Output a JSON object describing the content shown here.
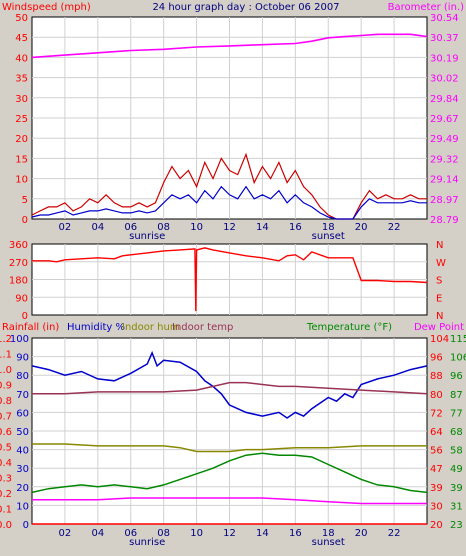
{
  "colors": {
    "background": "#d4d0c8",
    "plot_background": "#ffffff",
    "red": "#ff0000",
    "dark_red": "#cc0000",
    "blue": "#0000cc",
    "magenta": "#ff00ff",
    "maroon": "#993355",
    "olive": "#888800",
    "green": "#008800",
    "navy": "#000080"
  },
  "chart_data": [
    {
      "type": "line",
      "title": "24 hour graph day : October 06 2007",
      "ylabel": "Windspeed (mph)",
      "y2label": "Barometer (in.)",
      "xlim": [
        0,
        24
      ],
      "ylim": [
        0,
        50
      ],
      "y2lim": [
        28.79,
        30.54
      ],
      "xticks": [
        "02",
        "04",
        "06",
        "08",
        "10",
        "12",
        "14",
        "16",
        "18",
        "20",
        "22"
      ],
      "x_markers": [
        "sunrise",
        "sunset"
      ],
      "yticks": [
        "0",
        "5",
        "10",
        "15",
        "20",
        "25",
        "30",
        "35",
        "40",
        "45",
        "50"
      ],
      "y2ticks": [
        "28.79",
        "28.97",
        "29.14",
        "29.32",
        "29.49",
        "29.67",
        "29.84",
        "30.02",
        "30.19",
        "30.37",
        "30.54"
      ],
      "grid": true,
      "series": [
        {
          "name": "Barometer (in.)",
          "axis": "right",
          "color": "#ff00ff",
          "x": [
            0,
            2,
            4,
            6,
            8,
            10,
            12,
            14,
            16,
            17,
            18,
            19,
            20,
            21,
            22,
            23,
            24
          ],
          "values": [
            30.19,
            30.21,
            30.23,
            30.25,
            30.26,
            30.28,
            30.29,
            30.3,
            30.31,
            30.33,
            30.36,
            30.37,
            30.38,
            30.39,
            30.39,
            30.39,
            30.37
          ]
        },
        {
          "name": "Windspeed (mph)",
          "axis": "left",
          "color": "#cc0000",
          "x": [
            0,
            0.5,
            1,
            1.5,
            2,
            2.5,
            3,
            3.5,
            4,
            4.5,
            5,
            5.5,
            6,
            6.5,
            7,
            7.5,
            8,
            8.5,
            9,
            9.5,
            10,
            10.5,
            11,
            11.5,
            12,
            12.5,
            13,
            13.5,
            14,
            14.5,
            15,
            15.5,
            16,
            16.5,
            17,
            17.5,
            18,
            18.5,
            19,
            19.5,
            20,
            20.5,
            21,
            21.5,
            22,
            22.5,
            23,
            23.5,
            24
          ],
          "values": [
            1,
            2,
            3,
            3,
            4,
            2,
            3,
            5,
            4,
            6,
            4,
            3,
            3,
            4,
            3,
            4,
            9,
            13,
            10,
            12,
            8,
            14,
            10,
            15,
            12,
            11,
            16,
            9,
            13,
            10,
            14,
            9,
            12,
            8,
            6,
            3,
            1,
            0,
            0,
            0,
            4,
            7,
            5,
            6,
            5,
            5,
            6,
            5,
            5
          ]
        },
        {
          "name": "Wind average",
          "axis": "left",
          "color": "#0000cc",
          "x": [
            0,
            0.5,
            1,
            1.5,
            2,
            2.5,
            3,
            3.5,
            4,
            4.5,
            5,
            5.5,
            6,
            6.5,
            7,
            7.5,
            8,
            8.5,
            9,
            9.5,
            10,
            10.5,
            11,
            11.5,
            12,
            12.5,
            13,
            13.5,
            14,
            14.5,
            15,
            15.5,
            16,
            16.5,
            17,
            17.5,
            18,
            18.5,
            19,
            19.5,
            20,
            20.5,
            21,
            21.5,
            22,
            22.5,
            23,
            23.5,
            24
          ],
          "values": [
            0.5,
            1,
            1,
            1.5,
            2,
            1,
            1.5,
            2,
            2,
            2.5,
            2,
            1.5,
            1.5,
            2,
            1.5,
            2,
            4,
            6,
            5,
            6,
            4,
            7,
            5,
            8,
            6,
            5,
            8,
            5,
            6,
            5,
            7,
            4,
            6,
            4,
            3,
            1.5,
            0.5,
            0,
            0,
            0,
            3,
            5,
            4,
            4,
            4,
            4,
            4.5,
            4,
            4
          ]
        }
      ]
    },
    {
      "type": "line",
      "xlim": [
        0,
        24
      ],
      "ylim": [
        0,
        360
      ],
      "yticks": [
        "0",
        "90",
        "180",
        "270",
        "360"
      ],
      "y2ticks": [
        "N",
        "E",
        "S",
        "W",
        "N"
      ],
      "grid": true,
      "series": [
        {
          "name": "Wind direction",
          "color": "#ff0000",
          "x": [
            0,
            1,
            1.5,
            2,
            3,
            4,
            5,
            5.5,
            6,
            7,
            8,
            9,
            9.9,
            9.95,
            10,
            10.5,
            11,
            12,
            13,
            14,
            15,
            15.5,
            16,
            16.5,
            17,
            18,
            19,
            19.5,
            20,
            21,
            22,
            23,
            24
          ],
          "values": [
            275,
            275,
            270,
            280,
            285,
            290,
            285,
            300,
            305,
            315,
            325,
            330,
            335,
            20,
            330,
            340,
            330,
            315,
            300,
            290,
            275,
            300,
            305,
            280,
            320,
            290,
            290,
            290,
            175,
            175,
            170,
            170,
            165
          ]
        }
      ]
    },
    {
      "type": "line",
      "legend": [
        "Rainfall (in)",
        "Humidity %",
        "Indoor hum",
        "Indoor temp",
        "Temperature (°F)",
        "Dew Point"
      ],
      "xlim": [
        0,
        24
      ],
      "ylim": [
        0,
        100
      ],
      "y2lim": [
        20,
        104
      ],
      "y3lim": [
        23,
        115
      ],
      "rain_ticks": [
        "0.0",
        "0.1",
        "0.2",
        "0.3",
        "0.4",
        "0.5",
        "0.6",
        "0.7",
        "0.8",
        "0.9",
        "1.0",
        "1.1",
        "1.2"
      ],
      "yticks": [
        "0",
        "10",
        "20",
        "30",
        "40",
        "50",
        "60",
        "70",
        "80",
        "90",
        "100"
      ],
      "y2ticks": [
        "20",
        "30",
        "39",
        "47",
        "56",
        "64",
        "72",
        "80",
        "88",
        "96",
        "104"
      ],
      "y3ticks": [
        "23",
        "31",
        "39",
        "49",
        "58",
        "68",
        "77",
        "87",
        "96",
        "106",
        "115"
      ],
      "grid": true,
      "series": [
        {
          "name": "Rainfall (in)",
          "color": "#ff0000",
          "x": [
            0,
            24
          ],
          "values": [
            0,
            0
          ]
        },
        {
          "name": "Humidity %",
          "color": "#0000cc",
          "x": [
            0,
            1,
            2,
            3,
            4,
            5,
            6,
            7,
            7.3,
            7.6,
            8,
            9,
            10,
            10.5,
            11,
            11.5,
            12,
            12.5,
            13,
            14,
            15,
            15.5,
            16,
            16.5,
            17,
            18,
            18.5,
            19,
            19.5,
            20,
            21,
            22,
            23,
            24
          ],
          "values": [
            85,
            83,
            80,
            82,
            78,
            77,
            81,
            86,
            92,
            85,
            88,
            87,
            82,
            77,
            74,
            70,
            64,
            62,
            60,
            58,
            60,
            57,
            60,
            58,
            62,
            68,
            66,
            70,
            68,
            75,
            78,
            80,
            83,
            85
          ]
        },
        {
          "name": "Indoor hum",
          "color": "#888800",
          "x": [
            0,
            2,
            4,
            6,
            8,
            9,
            10,
            11,
            12,
            13,
            14,
            16,
            18,
            20,
            22,
            24
          ],
          "values": [
            43,
            43,
            42,
            42,
            42,
            41,
            39,
            39,
            39,
            40,
            40,
            41,
            41,
            42,
            42,
            42
          ]
        },
        {
          "name": "Indoor temp",
          "color": "#993355",
          "x": [
            0,
            2,
            4,
            6,
            8,
            10,
            11,
            12,
            13,
            14,
            15,
            16,
            18,
            20,
            22,
            24
          ],
          "values": [
            70,
            70,
            71,
            71,
            71,
            72,
            74,
            76,
            76,
            75,
            74,
            74,
            73,
            72,
            71,
            70
          ]
        },
        {
          "name": "Temperature (°F)",
          "color": "#008800",
          "x": [
            0,
            1,
            2,
            3,
            4,
            5,
            6,
            7,
            8,
            9,
            10,
            11,
            12,
            13,
            14,
            15,
            16,
            17,
            18,
            19,
            20,
            21,
            22,
            23,
            24
          ],
          "values": [
            17,
            19,
            20,
            21,
            20,
            21,
            20,
            19,
            21,
            24,
            27,
            30,
            34,
            37,
            38,
            37,
            37,
            36,
            32,
            28,
            24,
            21,
            20,
            18,
            17
          ]
        },
        {
          "name": "Dew Point",
          "color": "#ff00ff",
          "x": [
            0,
            2,
            4,
            6,
            8,
            10,
            12,
            14,
            16,
            18,
            20,
            22,
            24
          ],
          "values": [
            13,
            13,
            13,
            14,
            14,
            14,
            14,
            14,
            13,
            12,
            11,
            11,
            11
          ]
        }
      ]
    }
  ],
  "labels": {
    "top_left": "Windspeed (mph)",
    "top_title": "24 hour graph day : October 06 2007",
    "top_right": "Barometer (in.)",
    "sunrise": "sunrise",
    "sunset": "sunset",
    "rain": "Rainfall (in)",
    "humidity": "Humidity %",
    "indoor_hum": "Indoor hum",
    "indoor_temp": "Indoor temp",
    "temperature": "Temperature (°F)",
    "dew_point": "Dew Point"
  }
}
